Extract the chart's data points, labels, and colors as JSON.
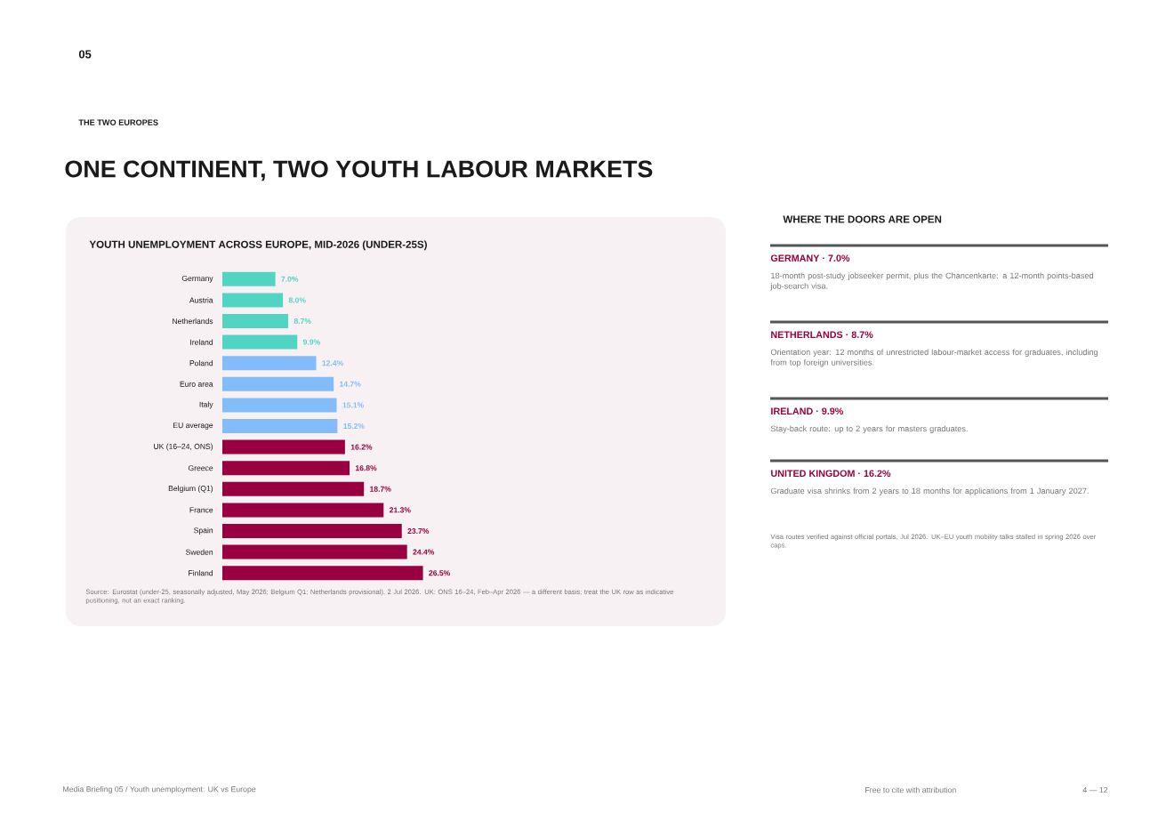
{
  "chart_data": {
    "type": "bar",
    "orientation": "horizontal",
    "title": "ONE CONTINENT, TWO YOUTH LABOUR MARKETS",
    "subtitle": "YOUTH UNEMPLOYMENT ACROSS EUROPE, MID-2026 (UNDER-25S)",
    "categories": [
      "Germany",
      "Austria",
      "Netherlands",
      "Ireland",
      "Poland",
      "Euro area",
      "Italy",
      "EU average",
      "UK (16–24, ONS)",
      "Greece",
      "Belgium (Q1)",
      "France",
      "Spain",
      "Sweden",
      "Finland"
    ],
    "values": [
      7.0,
      8.0,
      8.7,
      9.9,
      12.4,
      14.7,
      15.1,
      15.2,
      16.2,
      16.8,
      18.7,
      21.3,
      23.7,
      24.4,
      26.5
    ],
    "value_labels": [
      "7.0%",
      "8.0%",
      "8.7%",
      "9.9%",
      "12.4%",
      "14.7%",
      "15.1%",
      "15.2%",
      "16.2%",
      "16.8%",
      "18.7%",
      "21.3%",
      "23.7%",
      "24.4%",
      "26.5%"
    ],
    "colors": [
      "#52d4c3",
      "#52d4c3",
      "#52d4c3",
      "#52d4c3",
      "#82bcfa",
      "#82bcfa",
      "#82bcfa",
      "#82bcfa",
      "#990040",
      "#990040",
      "#990040",
      "#990040",
      "#990040",
      "#990040",
      "#990040"
    ],
    "annotations": [
      "05",
      "THE TWO EUROPES",
      "WHERE THE DOORS ARE OPEN",
      "GERMANY · 7.0%",
      "18-month post-study jobseeker permit, plus the Chancenkarte: a 12-month points-based job-search visa.",
      "NETHERLANDS · 8.7%",
      "Orientation year: 12 months of unrestricted labour-market access for graduates, including from top foreign universities.",
      "IRELAND · 9.9%",
      "Stay-back route: up to 2 years for masters graduates.",
      "UNITED KINGDOM · 16.2%",
      "Graduate visa shrinks from 2 years to 18 months for applications from 1 January 2027.",
      "Visa routes verified against official portals, Jul 2026. UK–EU youth mobility talks stalled in spring 2026 over caps.",
      "Source: Eurostat (under-25, seasonally adjusted, May 2026; Belgium Q1; Netherlands provisional), 2 Jul 2026. UK: ONS 16–24, Feb–Apr 2026 — a different basis; treat the UK row as indicative positioning, not an exact ranking.",
      "Media Briefing 05 / Youth unemployment: UK vs Europe",
      "Free to cite with attribution",
      "4 — 12"
    ]
  }
}
